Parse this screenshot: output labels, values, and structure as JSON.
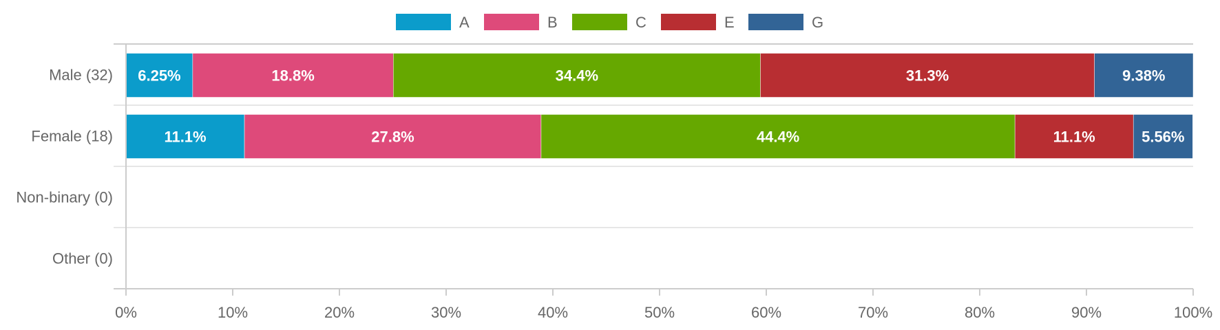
{
  "chart_data": {
    "type": "bar",
    "orientation": "horizontal",
    "stacked": true,
    "normalized": true,
    "categories": [
      "Male (32)",
      "Female (18)",
      "Non-binary (0)",
      "Other (0)"
    ],
    "series": [
      {
        "name": "A",
        "color": "#0b9ccb",
        "values": [
          6.25,
          11.1,
          0,
          0
        ],
        "labels": [
          "6.25%",
          "11.1%",
          "",
          ""
        ]
      },
      {
        "name": "B",
        "color": "#de4a7a",
        "values": [
          18.8,
          27.8,
          0,
          0
        ],
        "labels": [
          "18.8%",
          "27.8%",
          "",
          ""
        ]
      },
      {
        "name": "C",
        "color": "#66a800",
        "values": [
          34.4,
          44.4,
          0,
          0
        ],
        "labels": [
          "34.4%",
          "44.4%",
          "",
          ""
        ]
      },
      {
        "name": "E",
        "color": "#b82e32",
        "values": [
          31.3,
          11.1,
          0,
          0
        ],
        "labels": [
          "31.3%",
          "11.1%",
          "",
          ""
        ]
      },
      {
        "name": "G",
        "color": "#326496",
        "values": [
          9.38,
          5.56,
          0,
          0
        ],
        "labels": [
          "9.38%",
          "5.56%",
          "",
          ""
        ]
      }
    ],
    "x_ticks": [
      "0%",
      "10%",
      "20%",
      "30%",
      "40%",
      "50%",
      "60%",
      "70%",
      "80%",
      "90%",
      "100%"
    ],
    "xlim": [
      0,
      100
    ],
    "legend_position": "top-center",
    "grid": "horizontal category separators",
    "title": "",
    "xlabel": "",
    "ylabel": ""
  }
}
